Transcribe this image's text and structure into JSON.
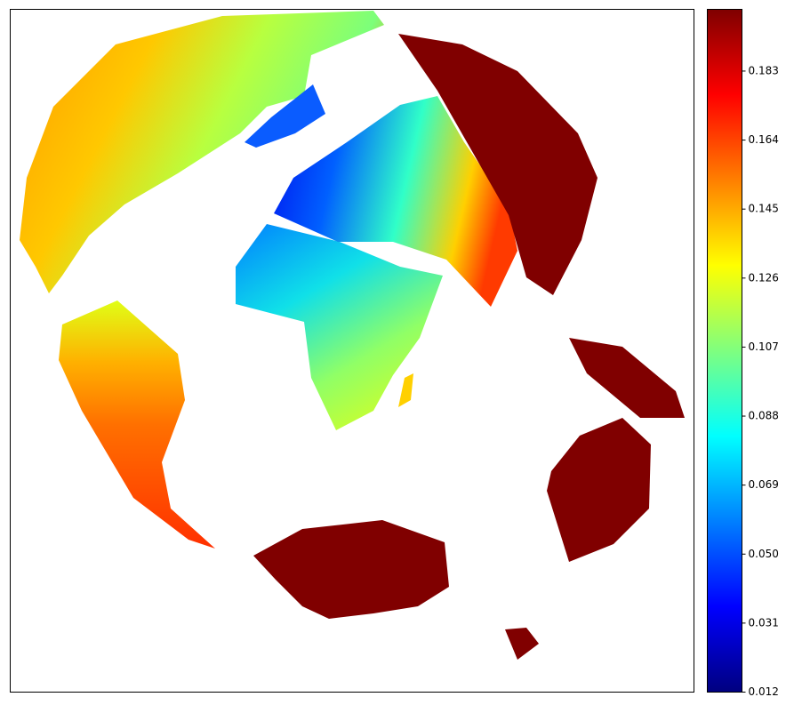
{
  "map": {
    "colorbar": {
      "colormap": "jet",
      "lim": [
        0.012,
        0.2
      ],
      "ticks": [
        0.012,
        0.031,
        {
          "value": 0.05,
          "label": "0.050"
        },
        0.069,
        0.088,
        0.107,
        0.126,
        0.145,
        0.164,
        0.183
      ]
    }
  }
}
